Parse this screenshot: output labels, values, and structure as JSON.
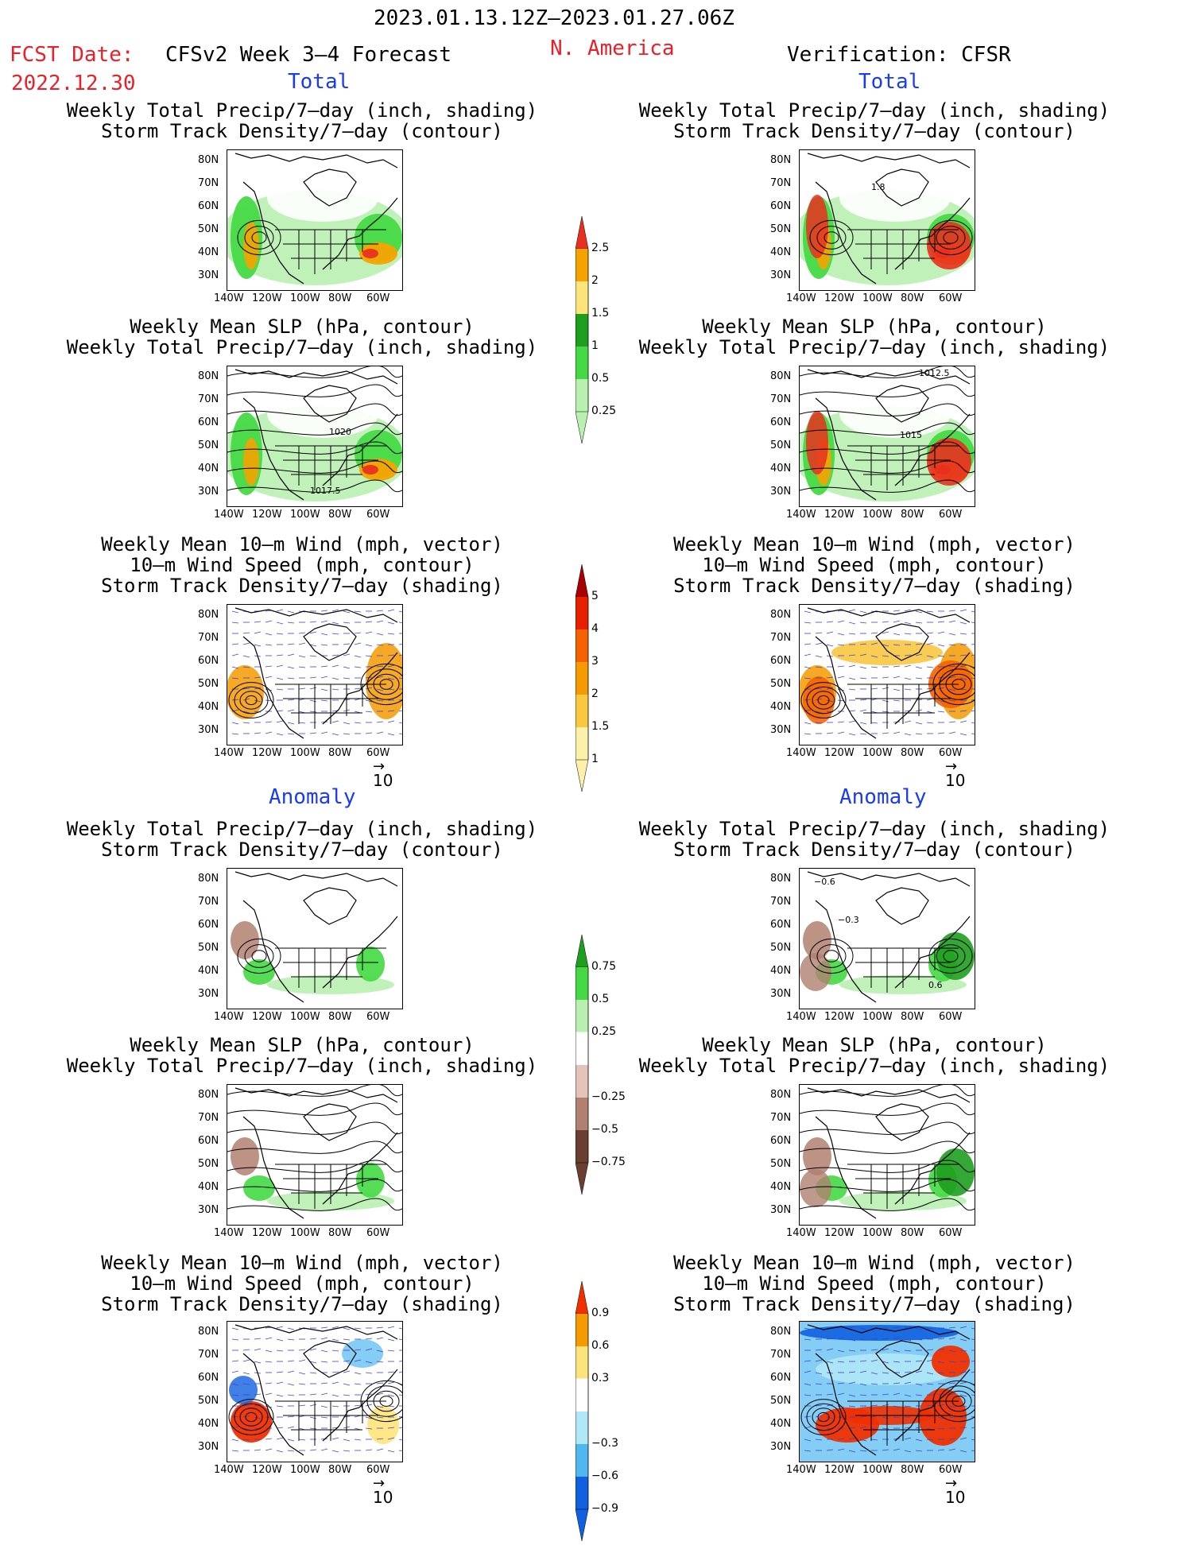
{
  "header": {
    "period": "2023.01.13.12Z–2023.01.27.06Z",
    "fcst_label": "FCST Date:",
    "fcst_date": "2022.12.30",
    "model": "CFSv2 Week 3–4 Forecast",
    "region": "N. America",
    "verification": "Verification: CFSR"
  },
  "sections": {
    "total": "Total",
    "anomaly": "Anomaly"
  },
  "titles": {
    "precip_storm": [
      "Weekly Total Precip/7–day (inch, shading)",
      "Storm Track Density/7–day (contour)"
    ],
    "slp_precip": [
      "Weekly Mean SLP (hPa, contour)",
      "Weekly Total Precip/7–day (inch, shading)"
    ],
    "wind_storm": [
      "Weekly Mean 10–m Wind (mph, vector)",
      "10–m Wind Speed (mph, contour)",
      "Storm Track Density/7–day (shading)"
    ]
  },
  "axes": {
    "lat_ticks": [
      "80N",
      "70N",
      "60N",
      "50N",
      "40N",
      "30N"
    ],
    "lon_ticks": [
      "140W",
      "120W",
      "100W",
      "80W",
      "60W"
    ]
  },
  "vector_ref": "10",
  "colorbars": {
    "precip_total": {
      "labels": [
        "2.5",
        "2",
        "1.5",
        "1",
        "0.5",
        "0.25"
      ],
      "colors": [
        "#e8301e",
        "#f5a300",
        "#fde47a",
        "#1e9e1e",
        "#44d944",
        "#b8f0b0"
      ]
    },
    "storm_total": {
      "labels": [
        "5",
        "4",
        "3",
        "2",
        "1.5",
        "1"
      ],
      "colors": [
        "#a80000",
        "#e82000",
        "#f56000",
        "#f59a00",
        "#f8c840",
        "#fdf0a8"
      ]
    },
    "precip_anom": {
      "labels": [
        "0.75",
        "0.5",
        "0.25",
        "−0.25",
        "−0.5",
        "−0.75"
      ],
      "colors": [
        "#1e9e1e",
        "#44d944",
        "#b8f0b0",
        "#ffffff",
        "#e4c4b8",
        "#b08070",
        "#6a3e30"
      ]
    },
    "storm_anom": {
      "labels": [
        "0.9",
        "0.6",
        "0.3",
        "−0.3",
        "−0.6",
        "−0.9"
      ],
      "colors": [
        "#f03000",
        "#f59a00",
        "#fde47a",
        "#ffffff",
        "#b0e8f8",
        "#50b8f0",
        "#1060e0"
      ]
    }
  },
  "map_labels": {
    "fcst_slp_a": "1020",
    "fcst_slp_b": "1017.5",
    "ver_slp_a": "1012.5",
    "ver_slp_b": "1015",
    "ver_storm_a": "1.8",
    "ver_anom_a": "−0.6",
    "ver_anom_b": "−0.3",
    "ver_anom_c": "0.6"
  }
}
